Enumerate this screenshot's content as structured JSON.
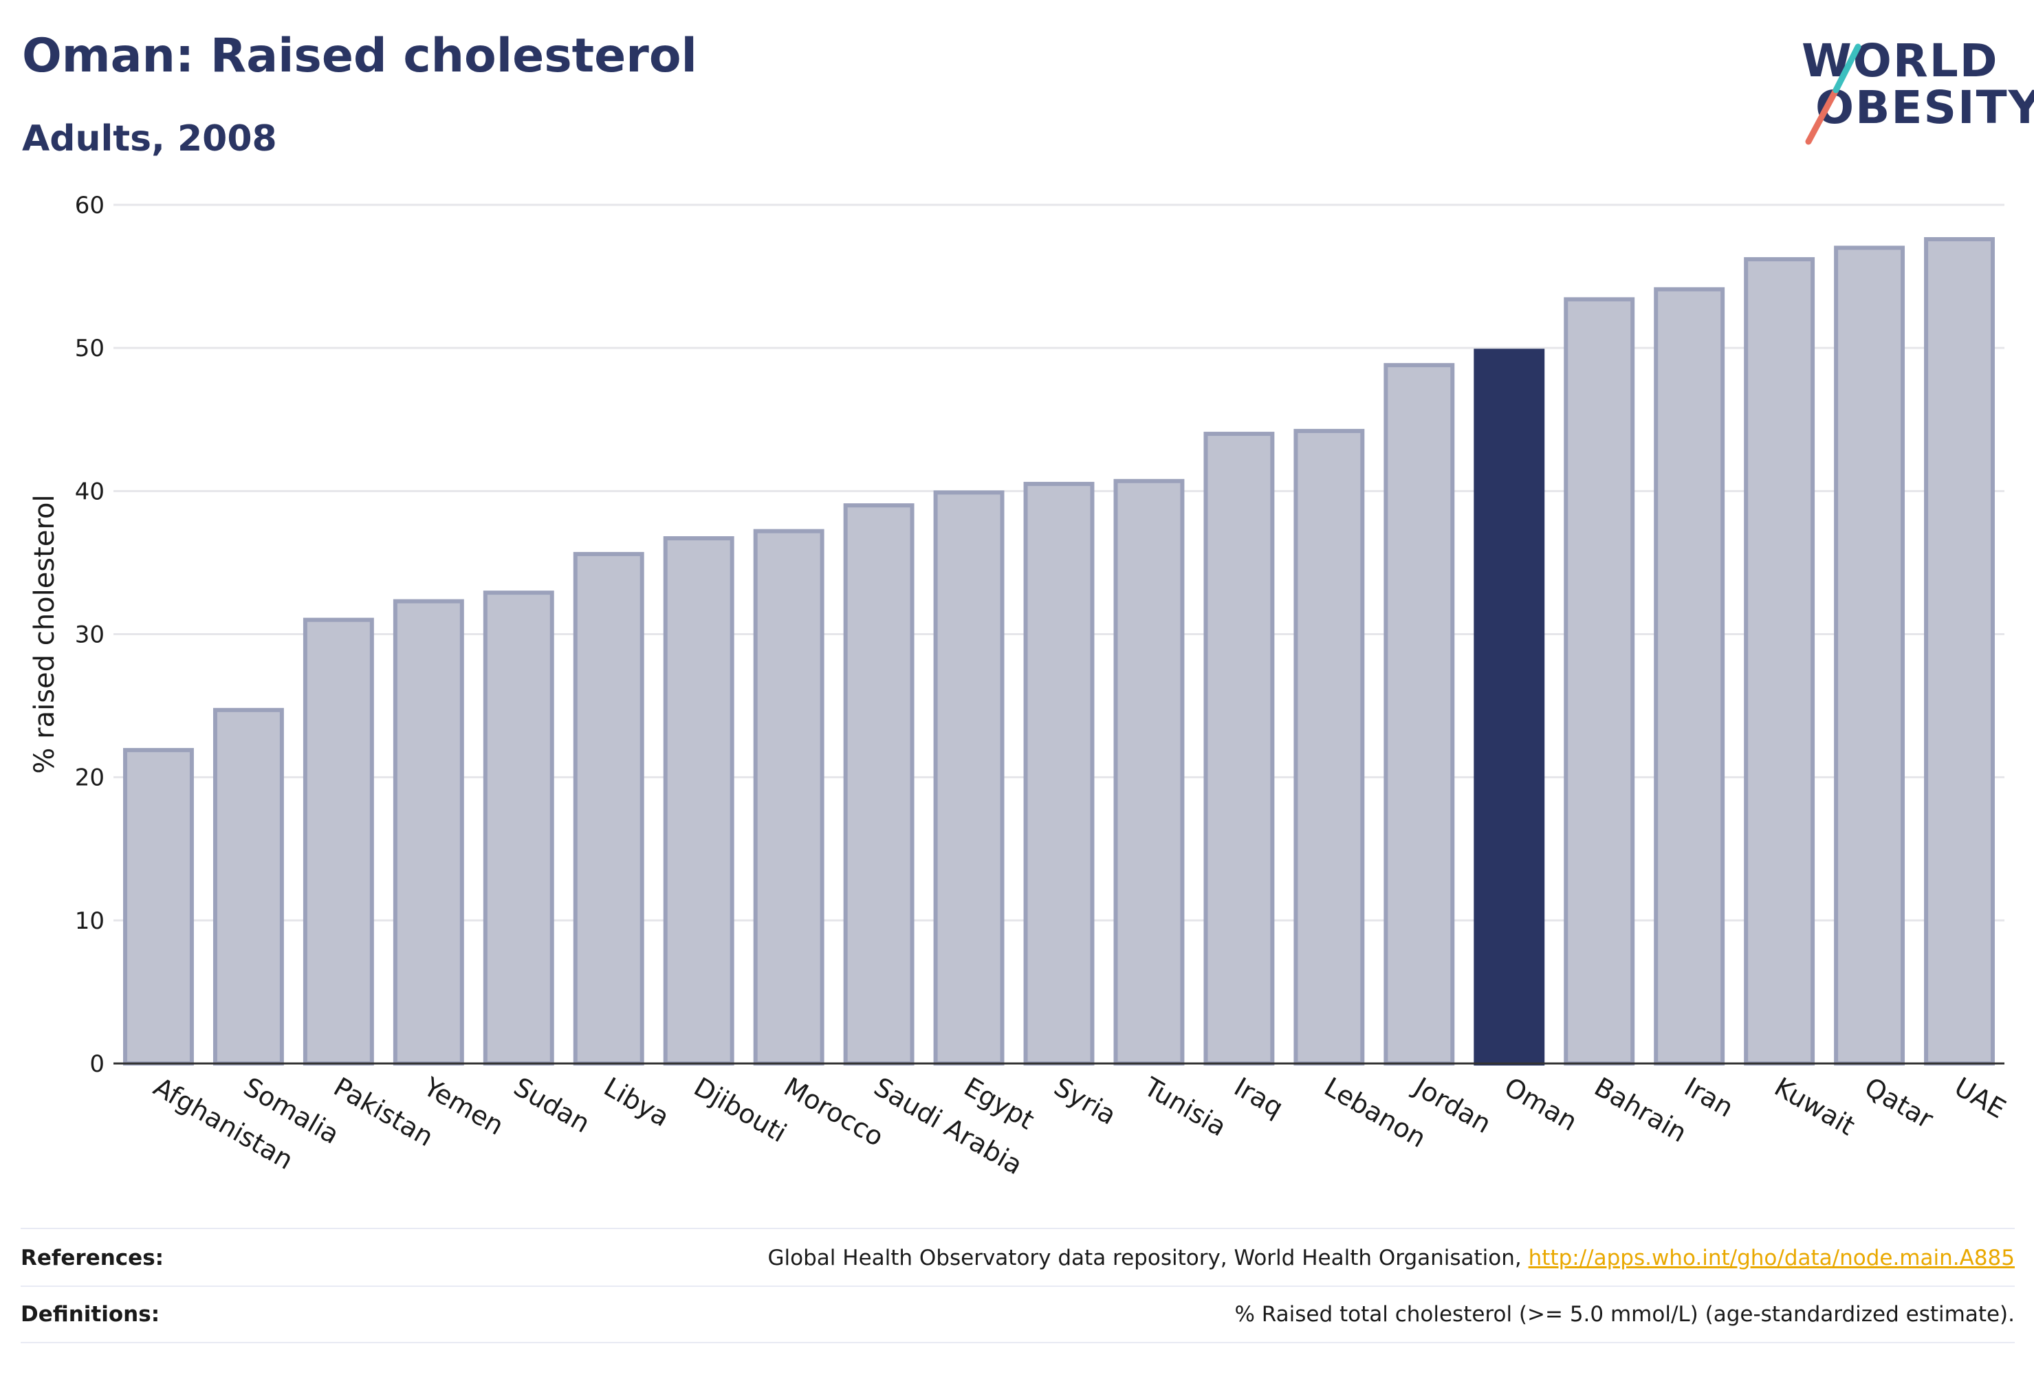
{
  "title": "Oman: Raised cholesterol",
  "subtitle": "Adults, 2008",
  "logo": {
    "line1": "WORLD",
    "line2": "OBESITY"
  },
  "colors": {
    "highlight": "#2a3563",
    "bar": "#bfc2d0",
    "bar_border": "#9ba1bb",
    "logo_slash_red": "#e8705e",
    "logo_slash_teal": "#3bbfbf",
    "link": "#e9a800"
  },
  "chart_data": {
    "type": "bar",
    "ylabel": "% raised cholesterol",
    "xlabel": "",
    "ylim": [
      0,
      60
    ],
    "yticks": [
      0,
      10,
      20,
      30,
      40,
      50,
      60
    ],
    "grid": true,
    "highlight": "Oman",
    "categories": [
      "Afghanistan",
      "Somalia",
      "Pakistan",
      "Yemen",
      "Sudan",
      "Libya",
      "Djibouti",
      "Morocco",
      "Saudi Arabia",
      "Egypt",
      "Syria",
      "Tunisia",
      "Iraq",
      "Lebanon",
      "Jordan",
      "Oman",
      "Bahrain",
      "Iran",
      "Kuwait",
      "Qatar",
      "UAE"
    ],
    "values": [
      21.9,
      24.7,
      31.0,
      32.3,
      32.9,
      35.6,
      36.7,
      37.2,
      39.0,
      39.9,
      40.5,
      40.7,
      44.0,
      44.2,
      48.8,
      49.8,
      53.4,
      54.1,
      56.2,
      57.0,
      57.6
    ]
  },
  "footer": {
    "references_label": "References:",
    "references_text": "Global Health Observatory data repository, World Health Organisation, ",
    "references_link": "http://apps.who.int/gho/data/node.main.A885",
    "definitions_label": "Definitions:",
    "definitions_text": "% Raised total cholesterol (>= 5.0 mmol/L) (age-standardized estimate)."
  }
}
